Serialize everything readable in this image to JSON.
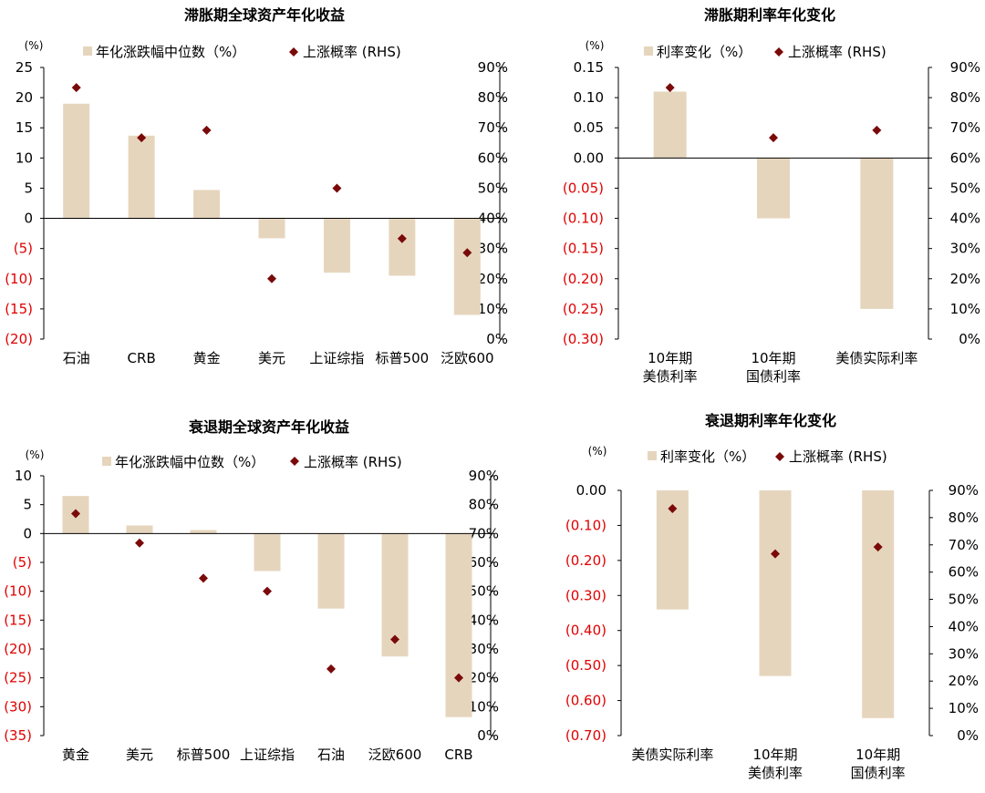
{
  "colors": {
    "bar": "#e6d5bd",
    "marker": "#7a0a0a",
    "neg_tick": "#e00000",
    "text": "#000000",
    "axis": "#000000"
  },
  "legend": {
    "rhs_marker": "上涨概率 (RHS)"
  },
  "chart_data": [
    {
      "id": "c1",
      "type": "bar",
      "title": "滞胀期全球资产年化收益",
      "unit_label": "(%)",
      "bar_legend": "年化涨跌幅中位数（%）",
      "rhs_legend": "上涨概率 (RHS)",
      "left_axis": {
        "min": -20,
        "max": 25,
        "step": 5,
        "decimals": 0
      },
      "right_axis": {
        "min": 0,
        "max": 90,
        "step": 10
      },
      "categories": [
        [
          "石油"
        ],
        [
          "CRB"
        ],
        [
          "黄金"
        ],
        [
          "美元"
        ],
        [
          "上证综指"
        ],
        [
          "标普500"
        ],
        [
          "泛欧600"
        ]
      ],
      "series": [
        {
          "name": "年化涨跌幅中位数（%）",
          "axis": "left",
          "values": [
            19.0,
            13.7,
            4.7,
            -3.3,
            -9.0,
            -9.5,
            -16.0
          ]
        },
        {
          "name": "上涨概率 (RHS)",
          "axis": "right",
          "values": [
            83.3,
            66.7,
            69.2,
            20.0,
            50.0,
            33.3,
            28.6
          ]
        }
      ]
    },
    {
      "id": "c2",
      "type": "bar",
      "title": "滞胀期利率年化变化",
      "unit_label": "(%)",
      "bar_legend": "利率变化（%）",
      "rhs_legend": "上涨概率 (RHS)",
      "left_axis": {
        "min": -0.3,
        "max": 0.15,
        "step": 0.05,
        "decimals": 2
      },
      "right_axis": {
        "min": 0,
        "max": 90,
        "step": 10
      },
      "categories": [
        [
          "10年期",
          "美债利率"
        ],
        [
          "10年期",
          "国债利率"
        ],
        [
          "美债实际利率"
        ]
      ],
      "series": [
        {
          "name": "利率变化（%）",
          "axis": "left",
          "values": [
            0.11,
            -0.1,
            -0.25
          ]
        },
        {
          "name": "上涨概率 (RHS)",
          "axis": "right",
          "values": [
            83.3,
            66.7,
            69.2
          ]
        }
      ]
    },
    {
      "id": "c3",
      "type": "bar",
      "title": "衰退期全球资产年化收益",
      "unit_label": "(%)",
      "bar_legend": "年化涨跌幅中位数（%）",
      "rhs_legend": "上涨概率 (RHS)",
      "left_axis": {
        "min": -35,
        "max": 10,
        "step": 5,
        "decimals": 0
      },
      "right_axis": {
        "min": 0,
        "max": 90,
        "step": 10
      },
      "categories": [
        [
          "黄金"
        ],
        [
          "美元"
        ],
        [
          "标普500"
        ],
        [
          "上证综指"
        ],
        [
          "石油"
        ],
        [
          "泛欧600"
        ],
        [
          "CRB"
        ]
      ],
      "series": [
        {
          "name": "年化涨跌幅中位数（%）",
          "axis": "left",
          "values": [
            6.5,
            1.4,
            0.6,
            -6.5,
            -13.0,
            -21.3,
            -31.8
          ]
        },
        {
          "name": "上涨概率 (RHS)",
          "axis": "right",
          "values": [
            76.9,
            66.7,
            54.5,
            50.0,
            23.1,
            33.3,
            20.0
          ]
        }
      ]
    },
    {
      "id": "c4",
      "type": "bar",
      "title": "衰退期利率年化变化",
      "unit_label": "(%)",
      "bar_legend": "利率变化（%）",
      "rhs_legend": "上涨概率 (RHS)",
      "left_axis": {
        "min": -0.7,
        "max": 0.0,
        "step": 0.1,
        "decimals": 2
      },
      "right_axis": {
        "min": 0,
        "max": 90,
        "step": 10
      },
      "categories": [
        [
          "美债实际利率"
        ],
        [
          "10年期",
          "美债利率"
        ],
        [
          "10年期",
          "国债利率"
        ]
      ],
      "series": [
        {
          "name": "利率变化（%）",
          "axis": "left",
          "values": [
            -0.34,
            -0.53,
            -0.65
          ]
        },
        {
          "name": "上涨概率 (RHS)",
          "axis": "right",
          "values": [
            83.3,
            66.7,
            69.2
          ]
        }
      ]
    }
  ]
}
